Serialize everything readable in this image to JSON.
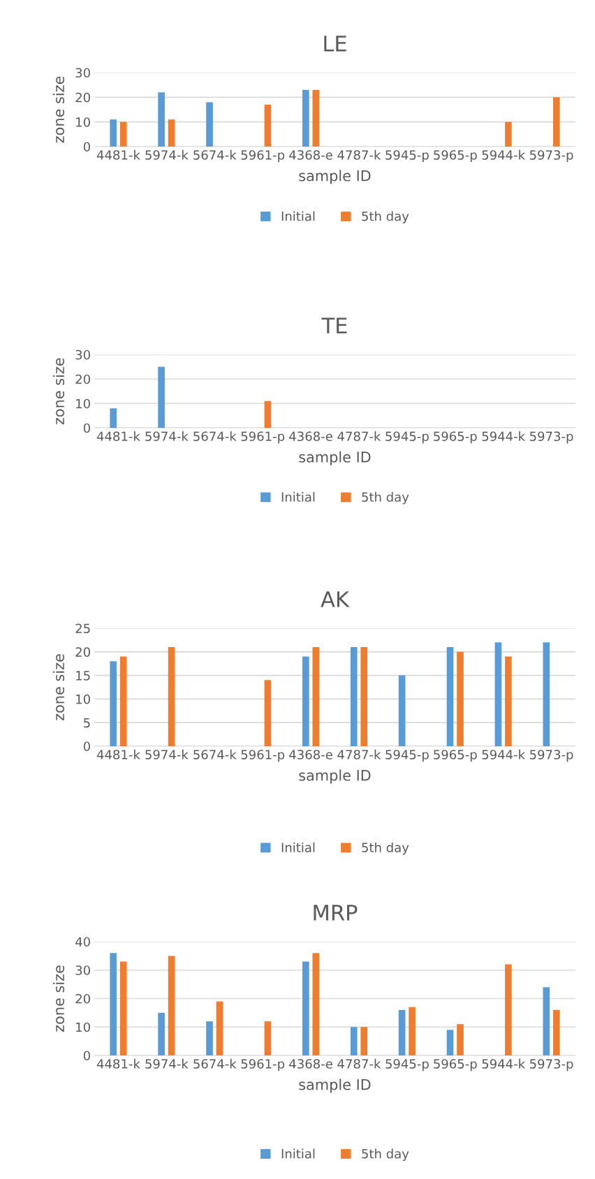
{
  "chart_data": [
    {
      "type": "bar",
      "title": "LE",
      "xlabel": "sample ID",
      "ylabel": "zone size",
      "categories": [
        "4481-k",
        "5974-k",
        "5674-k",
        "5961-p",
        "4368-e",
        "4787-k",
        "5945-p",
        "5965-p",
        "5944-k",
        "5973-p"
      ],
      "series": [
        {
          "name": "Initial",
          "color": "#5b9bd5",
          "values": [
            11,
            22,
            18,
            null,
            23,
            null,
            null,
            null,
            null,
            null
          ]
        },
        {
          "name": "5th day",
          "color": "#ed7d31",
          "values": [
            10,
            11,
            null,
            17,
            23,
            null,
            null,
            null,
            10,
            20
          ]
        }
      ],
      "ylim": [
        0,
        30
      ],
      "yticks": [
        0,
        10,
        20,
        30
      ],
      "grid": "y",
      "legend": "bottom"
    },
    {
      "type": "bar",
      "title": "TE",
      "xlabel": "sample ID",
      "ylabel": "zone size",
      "categories": [
        "4481-k",
        "5974-k",
        "5674-k",
        "5961-p",
        "4368-e",
        "4787-k",
        "5945-p",
        "5965-p",
        "5944-k",
        "5973-p"
      ],
      "series": [
        {
          "name": "Initial",
          "color": "#5b9bd5",
          "values": [
            8,
            25,
            null,
            null,
            null,
            null,
            null,
            null,
            null,
            null
          ]
        },
        {
          "name": "5th day",
          "color": "#ed7d31",
          "values": [
            null,
            null,
            null,
            11,
            null,
            null,
            null,
            null,
            null,
            null
          ]
        }
      ],
      "ylim": [
        0,
        30
      ],
      "yticks": [
        0,
        10,
        20,
        30
      ],
      "grid": "y",
      "legend": "bottom"
    },
    {
      "type": "bar",
      "title": "AK",
      "xlabel": "sample ID",
      "ylabel": "zone size",
      "categories": [
        "4481-k",
        "5974-k",
        "5674-k",
        "5961-p",
        "4368-e",
        "4787-k",
        "5945-p",
        "5965-p",
        "5944-k",
        "5973-p"
      ],
      "series": [
        {
          "name": "Initial",
          "color": "#5b9bd5",
          "values": [
            18,
            null,
            null,
            null,
            19,
            21,
            15,
            21,
            22,
            22
          ]
        },
        {
          "name": "5th day",
          "color": "#ed7d31",
          "values": [
            19,
            21,
            null,
            14,
            21,
            21,
            null,
            20,
            19,
            null
          ]
        }
      ],
      "ylim": [
        0,
        25
      ],
      "yticks": [
        0,
        5,
        10,
        15,
        20,
        25
      ],
      "grid": "y",
      "legend": "bottom"
    },
    {
      "type": "bar",
      "title": "MRP",
      "xlabel": "sample ID",
      "ylabel": "zone size",
      "categories": [
        "4481-k",
        "5974-k",
        "5674-k",
        "5961-p",
        "4368-e",
        "4787-k",
        "5945-p",
        "5965-p",
        "5944-k",
        "5973-p"
      ],
      "series": [
        {
          "name": "Initial",
          "color": "#5b9bd5",
          "values": [
            36,
            15,
            12,
            null,
            33,
            10,
            16,
            9,
            null,
            24
          ]
        },
        {
          "name": "5th day",
          "color": "#ed7d31",
          "values": [
            33,
            35,
            19,
            12,
            36,
            10,
            17,
            11,
            32,
            16
          ]
        }
      ],
      "ylim": [
        0,
        40
      ],
      "yticks": [
        0,
        10,
        20,
        30,
        40
      ],
      "grid": "y",
      "legend": "bottom"
    }
  ]
}
